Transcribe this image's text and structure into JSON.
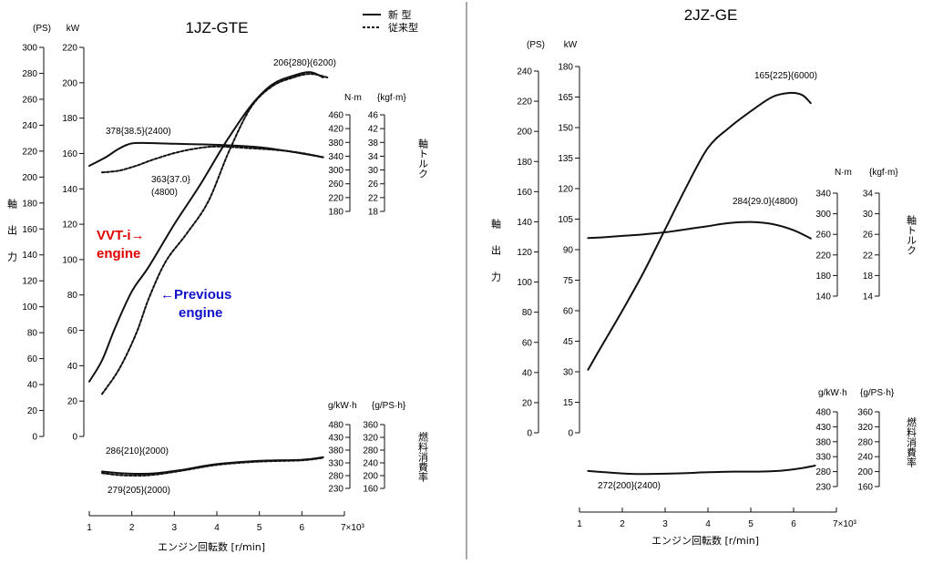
{
  "chart_data": [
    {
      "type": "line",
      "title": "1JZ-GTE",
      "legend": {
        "new": "新 型",
        "old": "従来型"
      },
      "xlabel": "エンジン回転数 [r/min]",
      "x_ticks": [
        "1",
        "2",
        "3",
        "4",
        "5",
        "6",
        "7×10³"
      ],
      "xlim": [
        1,
        7
      ],
      "power_axis": {
        "ps_unit": "(PS)",
        "kw_unit": "kW",
        "ps_ticks": [
          "300",
          "280",
          "260",
          "240",
          "220",
          "200",
          "180",
          "160",
          "140",
          "120",
          "100",
          "80",
          "60",
          "40",
          "20",
          "0"
        ],
        "kw_ticks": [
          "220",
          "200",
          "180",
          "160",
          "140",
          "120",
          "100",
          "80",
          "60",
          "40",
          "20",
          "0"
        ],
        "label": "軸出力",
        "kw_range": [
          0,
          220
        ]
      },
      "torque_axis": {
        "nm_unit": "N·m",
        "kgfm_unit": "{kgf·m}",
        "nm_ticks": [
          "460",
          "420",
          "380",
          "340",
          "300",
          "260",
          "220",
          "180"
        ],
        "kgfm_ticks": [
          "46",
          "42",
          "38",
          "34",
          "30",
          "26",
          "22",
          "18"
        ],
        "label": "軸トルク",
        "nm_range": [
          180,
          460
        ]
      },
      "bsfc_axis": {
        "gkwh_unit": "g/kW·h",
        "gpsh_unit": "{g/PS·h}",
        "gkwh_ticks": [
          "480",
          "430",
          "380",
          "330",
          "280",
          "230"
        ],
        "gpsh_ticks": [
          "360",
          "320",
          "280",
          "240",
          "200",
          "160"
        ],
        "label": "燃料消費率",
        "range": [
          230,
          480
        ]
      },
      "annotations": {
        "power_peak": "206{280}(6200)",
        "torque_new": "378{38.5}(2400)",
        "torque_old_1": "363{37.0}",
        "torque_old_2": "(4800)",
        "bsfc_new": "286{210}(2000)",
        "bsfc_old": "279{205}(2000)",
        "vvti_1": "VVT-i→",
        "vvti_2": "engine",
        "prev_1": "←Previous",
        "prev_2": "engine"
      },
      "series": [
        {
          "name": "新型 power (kW)",
          "axis": "power",
          "style": "solid",
          "x": [
            1.0,
            1.3,
            1.6,
            2.0,
            2.4,
            3.0,
            3.6,
            4.2,
            4.8,
            5.3,
            5.8,
            6.2,
            6.5
          ],
          "values": [
            31,
            43,
            61,
            82,
            96,
            120,
            142,
            166,
            187,
            199,
            204,
            206,
            203
          ]
        },
        {
          "name": "従来型 power (kW)",
          "axis": "power",
          "style": "dashed",
          "x": [
            1.3,
            1.7,
            2.1,
            2.4,
            2.8,
            3.3,
            3.8,
            4.3,
            4.8,
            5.3,
            5.8,
            6.2,
            6.6
          ],
          "values": [
            24,
            38,
            58,
            78,
            99,
            115,
            133,
            162,
            186,
            198,
            203,
            205,
            203
          ]
        },
        {
          "name": "新型 torque (N·m)",
          "axis": "torque",
          "style": "solid",
          "x": [
            1.0,
            1.4,
            1.7,
            2.0,
            2.4,
            3.0,
            4.0,
            5.0,
            5.8,
            6.5
          ],
          "values": [
            312,
            338,
            362,
            377,
            378,
            376,
            373,
            366,
            352,
            337
          ]
        },
        {
          "name": "従来型 torque (N·m)",
          "axis": "torque",
          "style": "dashed",
          "x": [
            1.3,
            1.7,
            2.1,
            2.5,
            3.0,
            3.5,
            4.0,
            4.8,
            5.5,
            6.0,
            6.5
          ],
          "values": [
            293,
            298,
            312,
            330,
            349,
            362,
            368,
            363,
            357,
            349,
            337
          ]
        },
        {
          "name": "新型 BSFC (g/kW·h)",
          "axis": "bsfc",
          "style": "solid",
          "x": [
            1.3,
            1.7,
            2.2,
            2.6,
            3.2,
            4.0,
            5.0,
            6.0,
            6.5
          ],
          "values": [
            296,
            290,
            287,
            290,
            303,
            325,
            338,
            342,
            352
          ]
        },
        {
          "name": "従来型 BSFC (g/kW·h)",
          "axis": "bsfc",
          "style": "dashed",
          "x": [
            1.3,
            1.7,
            2.2,
            2.6,
            3.2,
            4.0,
            5.0,
            6.0,
            6.5
          ],
          "values": [
            290,
            282,
            280,
            285,
            300,
            322,
            335,
            340,
            350
          ]
        }
      ]
    },
    {
      "type": "line",
      "title": "2JZ-GE",
      "xlabel": "エンジン回転数 [r/min]",
      "x_ticks": [
        "1",
        "2",
        "3",
        "4",
        "5",
        "6",
        "7×10³"
      ],
      "xlim": [
        1,
        7
      ],
      "power_axis": {
        "ps_unit": "(PS)",
        "kw_unit": "kW",
        "ps_ticks": [
          "240",
          "220",
          "200",
          "180",
          "160",
          "140",
          "120",
          "100",
          "80",
          "60",
          "40",
          "20",
          "0"
        ],
        "kw_ticks": [
          "180",
          "165",
          "150",
          "135",
          "120",
          "105",
          "90",
          "75",
          "60",
          "45",
          "30",
          "15",
          "0"
        ],
        "label": "軸出力",
        "kw_range": [
          0,
          180
        ]
      },
      "torque_axis": {
        "nm_unit": "N·m",
        "kgfm_unit": "{kgf·m}",
        "nm_ticks": [
          "340",
          "300",
          "260",
          "220",
          "180",
          "140"
        ],
        "kgfm_ticks": [
          "34",
          "30",
          "26",
          "22",
          "18",
          "14"
        ],
        "label": "軸トルク",
        "nm_range": [
          140,
          340
        ]
      },
      "bsfc_axis": {
        "gkwh_unit": "g/kW·h",
        "gpsh_unit": "{g/PS·h}",
        "gkwh_ticks": [
          "480",
          "430",
          "380",
          "330",
          "280",
          "230"
        ],
        "gpsh_ticks": [
          "360",
          "320",
          "280",
          "240",
          "200",
          "160"
        ],
        "label": "燃料消費率",
        "range": [
          230,
          480
        ]
      },
      "annotations": {
        "power_peak": "165{225}(6000)",
        "torque": "284{29.0}(4800)",
        "bsfc": "272{200}(2400)"
      },
      "series": [
        {
          "name": "power (kW)",
          "axis": "power",
          "style": "solid",
          "x": [
            1.2,
            1.5,
            2.0,
            2.5,
            3.0,
            3.5,
            4.0,
            4.5,
            5.0,
            5.5,
            5.9,
            6.2,
            6.4
          ],
          "values": [
            31,
            42,
            60,
            79,
            100,
            121,
            140,
            150,
            158,
            165,
            167,
            166,
            162
          ]
        },
        {
          "name": "torque (N·m)",
          "axis": "torque",
          "style": "solid",
          "x": [
            1.2,
            1.5,
            2.0,
            2.5,
            3.0,
            3.5,
            4.0,
            4.5,
            5.0,
            5.5,
            6.0,
            6.4
          ],
          "values": [
            253,
            254,
            257,
            260,
            264,
            270,
            276,
            282,
            284,
            280,
            268,
            252
          ]
        },
        {
          "name": "BSFC (g/kW·h)",
          "axis": "bsfc",
          "style": "solid",
          "x": [
            1.2,
            1.6,
            2.0,
            2.4,
            3.0,
            3.5,
            4.0,
            4.6,
            5.2,
            5.7,
            6.2,
            6.5
          ],
          "values": [
            282,
            278,
            274,
            272,
            273,
            275,
            278,
            280,
            280,
            283,
            292,
            300
          ]
        }
      ]
    }
  ]
}
